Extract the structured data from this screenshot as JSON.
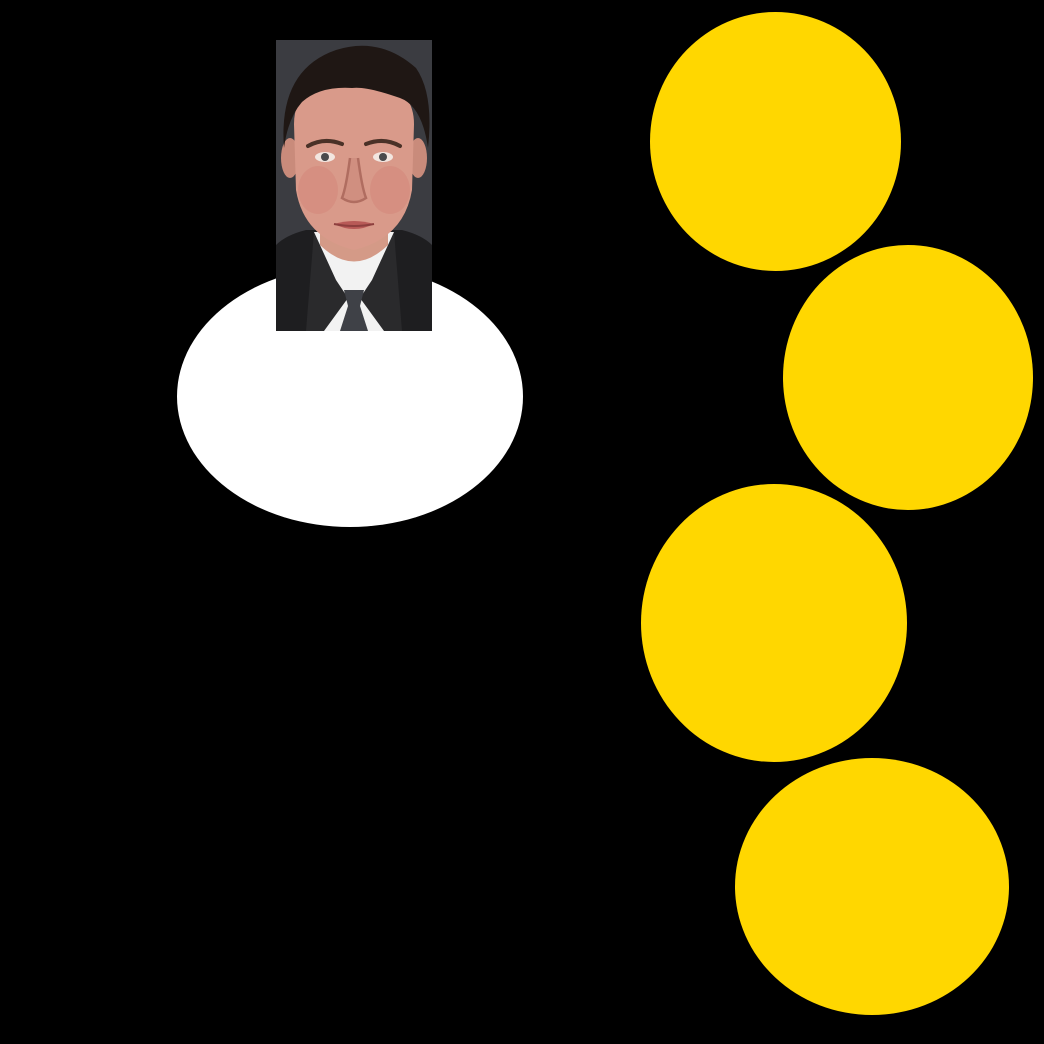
{
  "game": {
    "background_color": "#000000",
    "player": {
      "body_color": "#ffffff",
      "portrait": "face-portrait",
      "portrait_bg_color": "#3a3b40"
    },
    "coins": [
      {
        "id": "coin-1",
        "color": "#ffd700"
      },
      {
        "id": "coin-2",
        "color": "#ffd700"
      },
      {
        "id": "coin-3",
        "color": "#ffd700"
      },
      {
        "id": "coin-4",
        "color": "#ffd700"
      }
    ]
  }
}
